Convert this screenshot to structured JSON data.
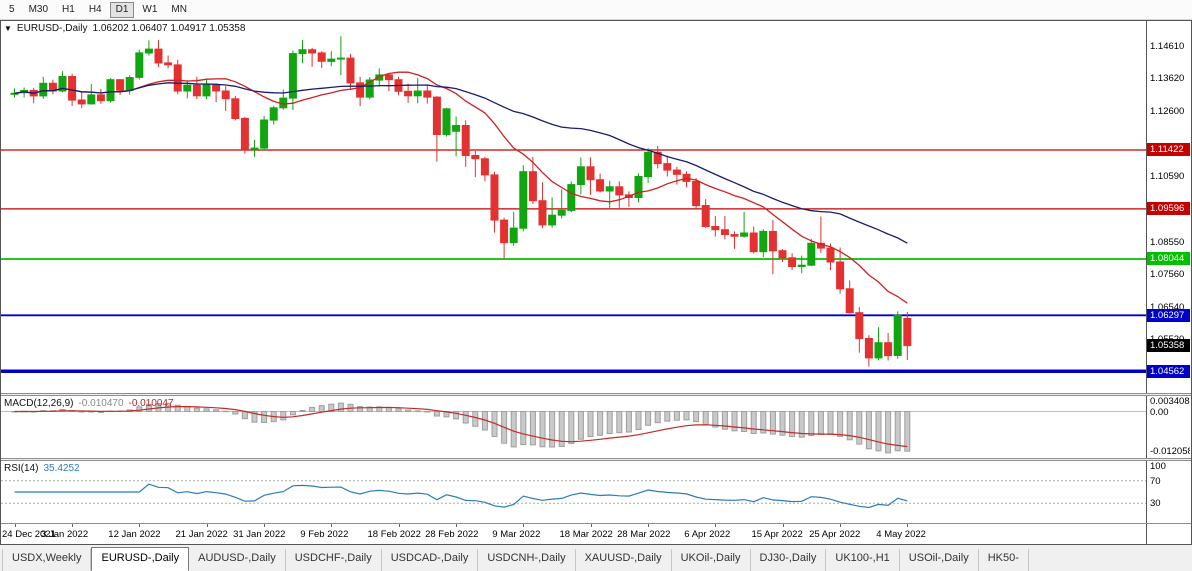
{
  "toolbar": {
    "buttons": [
      {
        "label": "5",
        "active": false
      },
      {
        "label": "M30",
        "active": false
      },
      {
        "label": "H1",
        "active": false
      },
      {
        "label": "H4",
        "active": false
      },
      {
        "label": "D1",
        "active": true
      },
      {
        "label": "W1",
        "active": false
      },
      {
        "label": "MN",
        "active": false
      }
    ]
  },
  "chart": {
    "type": "candlestick",
    "marker": "▼",
    "symbol_label": "EURUSD-,Daily",
    "ohlc_label": "1.06202 1.06407 1.04917 1.05358",
    "colors": {
      "up": "#11a511",
      "down": "#e33030"
    },
    "ma": [
      {
        "period": 13,
        "color": "#cc2222"
      },
      {
        "period": 34,
        "color": "#1c1c6e"
      }
    ],
    "y_labels": [
      {
        "text": "1.14610",
        "price": 1.1461
      },
      {
        "text": "1.13620",
        "price": 1.1362
      },
      {
        "text": "1.12600",
        "price": 1.126
      },
      {
        "text": "1.10590",
        "price": 1.1059
      },
      {
        "text": "1.08550",
        "price": 1.0855
      },
      {
        "text": "1.07560",
        "price": 1.0756
      },
      {
        "text": "1.06540",
        "price": 1.0654
      },
      {
        "text": "1.05520",
        "price": 1.0552
      }
    ],
    "hlines": [
      {
        "price": 1.11422,
        "label": "1.11422",
        "color": "#c40000",
        "width": 1.2
      },
      {
        "price": 1.09596,
        "label": "1.09596",
        "color": "#c40000",
        "width": 1.2
      },
      {
        "price": 1.08044,
        "label": "1.08044",
        "color": "#00c000",
        "width": 1.8
      },
      {
        "price": 1.06297,
        "label": "1.06297",
        "color": "#0000c8",
        "width": 1.8
      },
      {
        "price": 1.04562,
        "label": "1.04562",
        "color": "#0000c8",
        "width": 3.5
      }
    ],
    "current_price": {
      "text": "1.05358",
      "price": 1.05358,
      "color": "#000000"
    },
    "x_labels": [
      {
        "text": "24 Dec 2021",
        "index": 0
      },
      {
        "text": "3 Jan 2022",
        "index": 6
      },
      {
        "text": "12 Jan 2022",
        "index": 13
      },
      {
        "text": "21 Jan 2022",
        "index": 20
      },
      {
        "text": "31 Jan 2022",
        "index": 26
      },
      {
        "text": "9 Feb 2022",
        "index": 33
      },
      {
        "text": "18 Feb 2022",
        "index": 40
      },
      {
        "text": "28 Feb 2022",
        "index": 46
      },
      {
        "text": "9 Mar 2022",
        "index": 53
      },
      {
        "text": "18 Mar 2022",
        "index": 60
      },
      {
        "text": "28 Mar 2022",
        "index": 66
      },
      {
        "text": "6 Apr 2022",
        "index": 73
      },
      {
        "text": "15 Apr 2022",
        "index": 80
      },
      {
        "text": "25 Apr 2022",
        "index": 86
      },
      {
        "text": "4 May 2022",
        "index": 93
      }
    ],
    "candles": [
      [
        1.1318,
        1.1333,
        1.1305,
        1.1318
      ],
      [
        1.132,
        1.1336,
        1.1305,
        1.1327
      ],
      [
        1.1327,
        1.1335,
        1.1287,
        1.131
      ],
      [
        1.131,
        1.1369,
        1.1301,
        1.1349
      ],
      [
        1.1349,
        1.136,
        1.1315,
        1.1325
      ],
      [
        1.1325,
        1.1386,
        1.1321,
        1.137
      ],
      [
        1.137,
        1.1379,
        1.1279,
        1.1297
      ],
      [
        1.1297,
        1.1323,
        1.1272,
        1.1285
      ],
      [
        1.1285,
        1.1347,
        1.1283,
        1.1313
      ],
      [
        1.1313,
        1.1332,
        1.1285,
        1.1295
      ],
      [
        1.1295,
        1.1365,
        1.1289,
        1.136
      ],
      [
        1.136,
        1.1362,
        1.1313,
        1.1327
      ],
      [
        1.1327,
        1.1374,
        1.1314,
        1.1367
      ],
      [
        1.1367,
        1.1453,
        1.136,
        1.1443
      ],
      [
        1.1443,
        1.1482,
        1.1435,
        1.1455
      ],
      [
        1.1455,
        1.1483,
        1.1399,
        1.1412
      ],
      [
        1.1412,
        1.1435,
        1.1395,
        1.1406
      ],
      [
        1.1406,
        1.1422,
        1.1315,
        1.1325
      ],
      [
        1.1325,
        1.1358,
        1.1302,
        1.1343
      ],
      [
        1.1343,
        1.1369,
        1.13,
        1.131
      ],
      [
        1.131,
        1.136,
        1.13,
        1.1344
      ],
      [
        1.1344,
        1.1348,
        1.129,
        1.1325
      ],
      [
        1.1325,
        1.134,
        1.1263,
        1.1301
      ],
      [
        1.1301,
        1.131,
        1.1234,
        1.124
      ],
      [
        1.124,
        1.1245,
        1.1131,
        1.1144
      ],
      [
        1.1144,
        1.1174,
        1.1121,
        1.1148
      ],
      [
        1.1148,
        1.1248,
        1.1141,
        1.1235
      ],
      [
        1.1235,
        1.1279,
        1.1221,
        1.1273
      ],
      [
        1.1273,
        1.133,
        1.1267,
        1.1303
      ],
      [
        1.1303,
        1.1451,
        1.1266,
        1.1441
      ],
      [
        1.1441,
        1.1483,
        1.1411,
        1.1453
      ],
      [
        1.1453,
        1.1459,
        1.14,
        1.1443
      ],
      [
        1.1443,
        1.1448,
        1.1396,
        1.1417
      ],
      [
        1.1417,
        1.1448,
        1.1402,
        1.1424
      ],
      [
        1.1424,
        1.1495,
        1.1374,
        1.1427
      ],
      [
        1.1427,
        1.144,
        1.1329,
        1.135
      ],
      [
        1.135,
        1.1369,
        1.1278,
        1.1306
      ],
      [
        1.1306,
        1.1368,
        1.13,
        1.1359
      ],
      [
        1.1359,
        1.1395,
        1.1338,
        1.1375
      ],
      [
        1.1375,
        1.138,
        1.1324,
        1.136
      ],
      [
        1.136,
        1.1369,
        1.1312,
        1.1324
      ],
      [
        1.1324,
        1.1348,
        1.1288,
        1.131
      ],
      [
        1.131,
        1.1366,
        1.1287,
        1.1325
      ],
      [
        1.1325,
        1.1343,
        1.1286,
        1.1306
      ],
      [
        1.1306,
        1.1309,
        1.1106,
        1.119
      ],
      [
        1.119,
        1.1273,
        1.1184,
        1.127
      ],
      [
        1.12,
        1.1246,
        1.1122,
        1.1218
      ],
      [
        1.1218,
        1.1234,
        1.109,
        1.1125
      ],
      [
        1.1125,
        1.1139,
        1.1058,
        1.1115
      ],
      [
        1.1115,
        1.1121,
        1.1045,
        1.1065
      ],
      [
        1.1065,
        1.1075,
        1.0886,
        1.0925
      ],
      [
        1.0925,
        1.0932,
        1.0806,
        1.0855
      ],
      [
        1.0855,
        1.095,
        1.0845,
        1.09
      ],
      [
        1.09,
        1.1095,
        1.089,
        1.1075
      ],
      [
        1.1075,
        1.1121,
        1.0975,
        1.0985
      ],
      [
        1.0985,
        1.1042,
        1.09,
        1.091
      ],
      [
        1.091,
        1.0995,
        1.0901,
        1.094
      ],
      [
        1.094,
        1.102,
        1.093,
        1.0955
      ],
      [
        1.0955,
        1.1045,
        1.095,
        1.1035
      ],
      [
        1.1035,
        1.1119,
        1.1005,
        1.109
      ],
      [
        1.109,
        1.112,
        1.1003,
        1.105
      ],
      [
        1.105,
        1.1069,
        1.101,
        1.1015
      ],
      [
        1.1015,
        1.1047,
        1.096,
        1.1028
      ],
      [
        1.1028,
        1.1045,
        1.0963,
        1.1003
      ],
      [
        1.1003,
        1.1014,
        1.0966,
        1.0995
      ],
      [
        1.0995,
        1.107,
        1.098,
        1.106
      ],
      [
        1.106,
        1.1148,
        1.104,
        1.1135
      ],
      [
        1.1135,
        1.1155,
        1.1085,
        1.11
      ],
      [
        1.11,
        1.1125,
        1.106,
        1.108
      ],
      [
        1.108,
        1.109,
        1.1035,
        1.1067
      ],
      [
        1.1067,
        1.1076,
        1.1027,
        1.1045
      ],
      [
        1.1045,
        1.1055,
        1.096,
        1.097
      ],
      [
        1.097,
        1.099,
        1.09,
        1.0905
      ],
      [
        1.0905,
        1.0938,
        1.0874,
        1.0895
      ],
      [
        1.0895,
        1.0938,
        1.0865,
        1.088
      ],
      [
        1.088,
        1.089,
        1.0836,
        1.0875
      ],
      [
        1.0875,
        1.095,
        1.087,
        1.0885
      ],
      [
        1.0885,
        1.0905,
        1.0821,
        1.0827
      ],
      [
        1.0827,
        1.0897,
        1.081,
        1.089
      ],
      [
        1.089,
        1.0925,
        1.0757,
        1.083
      ],
      [
        1.083,
        1.0835,
        1.0795,
        1.0808
      ],
      [
        1.0808,
        1.0822,
        1.077,
        1.0781
      ],
      [
        1.0781,
        1.0815,
        1.076,
        1.0785
      ],
      [
        1.0785,
        1.0867,
        1.0782,
        1.0853
      ],
      [
        1.0853,
        1.0936,
        1.0824,
        1.0838
      ],
      [
        1.0838,
        1.0852,
        1.077,
        1.0795
      ],
      [
        1.0795,
        1.084,
        1.0697,
        1.0712
      ],
      [
        1.0712,
        1.0738,
        1.0635,
        1.0638
      ],
      [
        1.0638,
        1.0655,
        1.0514,
        1.0558
      ],
      [
        1.0558,
        1.0568,
        1.0471,
        1.0498
      ],
      [
        1.0498,
        1.0593,
        1.049,
        1.0545
      ],
      [
        1.0545,
        1.0575,
        1.049,
        1.0505
      ],
      [
        1.0505,
        1.0642,
        1.0495,
        1.063
      ],
      [
        1.06202,
        1.06407,
        1.04917,
        1.05358
      ]
    ]
  },
  "macd": {
    "label": "MACD(12,26,9)",
    "value_main": "-0.010470",
    "value_signal": "-0.010047",
    "hist_color": "#c9c9c9",
    "hist_stroke": "#9e9e9e",
    "signal_color": "#c22b2b",
    "axis": [
      {
        "text": "0.003408",
        "value": 0.003408
      },
      {
        "text": "0.00",
        "value": 0
      },
      {
        "text": "-0.012058",
        "value": -0.012058
      }
    ]
  },
  "rsi": {
    "label": "RSI(14)",
    "value": "35.4252",
    "color": "#2b7cbe",
    "levels": [
      30,
      70
    ],
    "axis": [
      {
        "text": "100",
        "value": 100
      },
      {
        "text": "70",
        "value": 70
      },
      {
        "text": "30",
        "value": 30
      }
    ]
  },
  "tabs": [
    {
      "label": "USDX,Weekly",
      "active": false
    },
    {
      "label": "EURUSD-,Daily",
      "active": true
    },
    {
      "label": "AUDUSD-,Daily",
      "active": false
    },
    {
      "label": "USDCHF-,Daily",
      "active": false
    },
    {
      "label": "USDCAD-,Daily",
      "active": false
    },
    {
      "label": "USDCNH-,Daily",
      "active": false
    },
    {
      "label": "XAUUSD-,Daily",
      "active": false
    },
    {
      "label": "UKOil-,Daily",
      "active": false
    },
    {
      "label": "DJ30-,Daily",
      "active": false
    },
    {
      "label": "UK100-,H1",
      "active": false
    },
    {
      "label": "USOil-,Daily",
      "active": false
    },
    {
      "label": "HK50-",
      "active": false
    }
  ]
}
